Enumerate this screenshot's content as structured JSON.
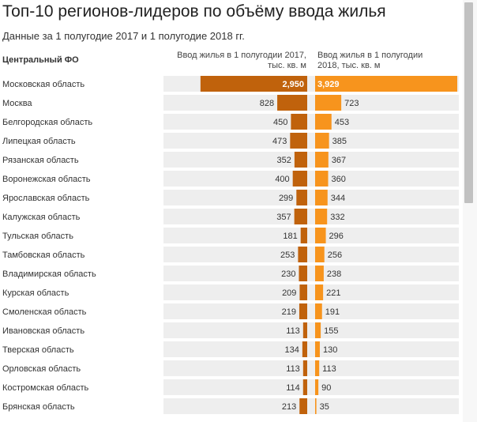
{
  "title": "Топ-10 регионов-лидеров по объёму ввода жилья",
  "subtitle": "Данные за 1 полугодие 2017 и 1 полугодие 2018 гг.",
  "section_label": "Центральный ФО",
  "chart_data": {
    "type": "bar",
    "title": "Топ-10 регионов-лидеров по объёму ввода жилья",
    "subtitle": "Данные за 1 полугодие 2017 и 1 полугодие 2018 гг.",
    "group": "Центральный ФО",
    "categories": [
      "Московская область",
      "Москва",
      "Белгородская область",
      "Липецкая область",
      "Рязанская область",
      "Воронежская область",
      "Ярославская область",
      "Калужская область",
      "Тульская область",
      "Тамбовская область",
      "Владимирская область",
      "Курская область",
      "Смоленская область",
      "Ивановская область",
      "Тверская область",
      "Орловская область",
      "Костромская область",
      "Брянская область"
    ],
    "series": [
      {
        "name": "Ввод жилья в 1 полугодии 2017, тыс. кв. м",
        "color": "#c0620c",
        "values": [
          2950,
          828,
          450,
          473,
          352,
          400,
          299,
          357,
          181,
          253,
          230,
          209,
          219,
          113,
          134,
          113,
          114,
          213
        ],
        "labels": [
          "2,950",
          "828",
          "450",
          "473",
          "352",
          "400",
          "299",
          "357",
          "181",
          "253",
          "230",
          "209",
          "219",
          "113",
          "134",
          "113",
          "114",
          "213"
        ]
      },
      {
        "name": "Ввод жилья в 1 полугодии 2018, тыс. кв. м",
        "color": "#f7941d",
        "values": [
          3929,
          723,
          453,
          385,
          367,
          360,
          344,
          332,
          296,
          256,
          238,
          221,
          191,
          155,
          130,
          113,
          90,
          35
        ],
        "labels": [
          "3,929",
          "723",
          "453",
          "385",
          "367",
          "360",
          "344",
          "332",
          "296",
          "256",
          "238",
          "221",
          "191",
          "155",
          "130",
          "113",
          "90",
          "35"
        ]
      }
    ],
    "row_background": "#eeeeee",
    "grid": false,
    "legend": "column headers"
  }
}
